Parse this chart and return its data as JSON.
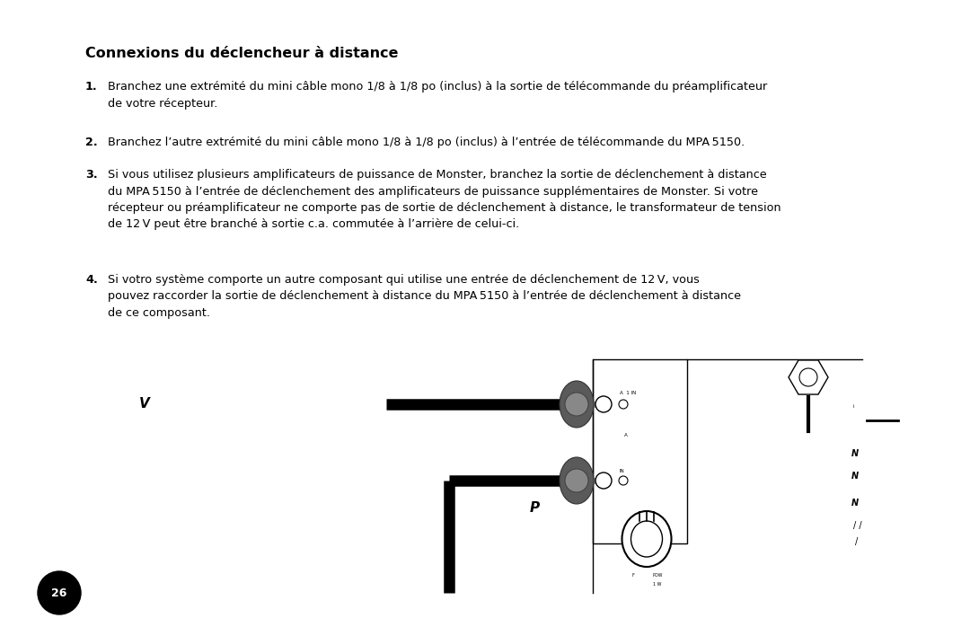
{
  "title": "Connexions du déclencheur à distance",
  "background_color": "#ffffff",
  "text_color": "#000000",
  "page_number": "26",
  "page_number_bg": "#000000",
  "page_number_color": "#ffffff",
  "items": [
    {
      "num": "1.",
      "text": "Branchez une extrémité du mini câble mono 1/8 à 1/8 po (inclus) à la sortie de télécommande du préamplificateur\nde votre récepteur."
    },
    {
      "num": "2.",
      "text": "Branchez l’autre extrémité du mini câble mono 1/8 à 1/8 po (inclus) à l’entrée de télécommande du MPA 5150."
    },
    {
      "num": "3.",
      "text": "Si vous utilisez plusieurs amplificateurs de puissance de Monster, branchez la sortie de déclenchement à distance\ndu MPA 5150 à l’entrée de déclenchement des amplificateurs de puissance supplémentaires de Monster. Si votre\nrécepteur ou préamplificateur ne comporte pas de sortie de déclenchement à distance, le transformateur de tension\nde 12 V peut être branché à sortie c.a. commutée à l’arrière de celui-ci."
    },
    {
      "num": "4.",
      "text": "Si votro système comporte un autre composant qui utilise une entrée de déclenchement de 12 V, vous\npouvez raccorder la sortie de déclenchement à distance du MPA 5150 à l’entrée de déclenchement à distance\nde ce composant."
    }
  ]
}
